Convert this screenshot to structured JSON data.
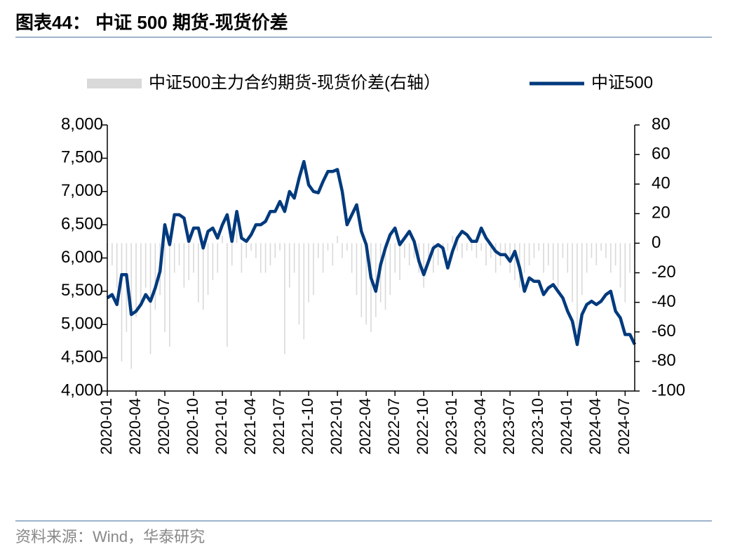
{
  "title": "图表44：  中证 500 期货-现货价差",
  "source": "资料来源：Wind，华泰研究",
  "chart_data": {
    "type": "combo",
    "categories": [
      "2020-01",
      null,
      null,
      null,
      null,
      null,
      "2020-04",
      null,
      null,
      null,
      null,
      null,
      "2020-07",
      null,
      null,
      null,
      null,
      null,
      "2020-10",
      null,
      null,
      null,
      null,
      null,
      "2021-01",
      null,
      null,
      null,
      null,
      null,
      "2021-04",
      null,
      null,
      null,
      null,
      null,
      "2021-07",
      null,
      null,
      null,
      null,
      null,
      "2021-10",
      null,
      null,
      null,
      null,
      null,
      "2022-01",
      null,
      null,
      null,
      null,
      null,
      "2022-04",
      null,
      null,
      null,
      null,
      null,
      "2022-07",
      null,
      null,
      null,
      null,
      null,
      "2022-10",
      null,
      null,
      null,
      null,
      null,
      "2023-01",
      null,
      null,
      null,
      null,
      null,
      "2023-04",
      null,
      null,
      null,
      null,
      null,
      "2023-07",
      null,
      null,
      null,
      null,
      null,
      "2023-10",
      null,
      null,
      null,
      null,
      null,
      "2024-01",
      null,
      null,
      null,
      null,
      null,
      "2024-04",
      null,
      null,
      null,
      null,
      null,
      "2024-07",
      null,
      null
    ],
    "series": [
      {
        "name": "中证500主力合约期货-现货价差(右轴）",
        "type": "bar",
        "axis": "y2",
        "color": "#d9d9d9",
        "values": [
          -5,
          -15,
          -30,
          -80,
          -60,
          -85,
          -50,
          -40,
          -30,
          -75,
          -45,
          -35,
          -60,
          -70,
          -20,
          -15,
          -30,
          -25,
          -20,
          -40,
          -45,
          -35,
          -25,
          -20,
          5,
          -70,
          -15,
          10,
          -20,
          -10,
          -5,
          -10,
          -20,
          -20,
          -15,
          -10,
          -5,
          -75,
          -30,
          -20,
          -55,
          -65,
          -40,
          -35,
          -10,
          -20,
          -5,
          -15,
          5,
          -10,
          -5,
          -20,
          -35,
          -50,
          -55,
          -60,
          -50,
          -40,
          -45,
          -35,
          -20,
          -25,
          -10,
          -15,
          -10,
          -20,
          -30,
          -15,
          -20,
          -15,
          -10,
          -5,
          5,
          -5,
          -10,
          -5,
          -5,
          -10,
          -5,
          -15,
          -10,
          -20,
          -15,
          -10,
          -20,
          -25,
          -30,
          -20,
          -15,
          -10,
          -5,
          -20,
          -15,
          -25,
          -30,
          -10,
          -20,
          -40,
          -60,
          -35,
          -20,
          -10,
          -15,
          -5,
          -10,
          -20,
          -15,
          -30,
          -40,
          -20,
          -10
        ]
      },
      {
        "name": "中证500",
        "type": "line",
        "color": "#003a7d",
        "values": [
          5400,
          5450,
          5300,
          5750,
          5750,
          5150,
          5200,
          5300,
          5450,
          5350,
          5550,
          5800,
          6500,
          6200,
          6650,
          6650,
          6600,
          6250,
          6450,
          6450,
          6150,
          6400,
          6450,
          6300,
          6500,
          6650,
          6250,
          6700,
          6300,
          6250,
          6350,
          6500,
          6500,
          6550,
          6700,
          6700,
          6850,
          6700,
          7000,
          6900,
          7200,
          7450,
          7100,
          7000,
          6980,
          7150,
          7300,
          7300,
          7330,
          7000,
          6500,
          6650,
          6800,
          6400,
          6200,
          5700,
          5500,
          5900,
          6150,
          6350,
          6450,
          6200,
          6300,
          6400,
          6250,
          5950,
          5750,
          5950,
          6150,
          6200,
          6150,
          5850,
          6100,
          6300,
          6400,
          6350,
          6250,
          6250,
          6450,
          6300,
          6200,
          6100,
          6050,
          6050,
          5950,
          6100,
          5850,
          5500,
          5700,
          5650,
          5650,
          5450,
          5550,
          5600,
          5500,
          5400,
          5200,
          5050,
          4700,
          5150,
          5300,
          5350,
          5300,
          5350,
          5450,
          5500,
          5200,
          5100,
          4850,
          4850,
          4700
        ]
      }
    ],
    "ylim": [
      4000,
      8000
    ],
    "yticks": [
      {
        "value": 4000,
        "label": "4,000"
      },
      {
        "value": 4500,
        "label": "4,500"
      },
      {
        "value": 5000,
        "label": "5,000"
      },
      {
        "value": 5500,
        "label": "5,500"
      },
      {
        "value": 6000,
        "label": "6,000"
      },
      {
        "value": 6500,
        "label": "6,500"
      },
      {
        "value": 7000,
        "label": "7,000"
      },
      {
        "value": 7500,
        "label": "7,500"
      },
      {
        "value": 8000,
        "label": "8,000"
      }
    ],
    "y2lim": [
      -100,
      80
    ],
    "y2ticks": [
      -100,
      -80,
      -60,
      -40,
      -20,
      0,
      20,
      40,
      60,
      80
    ],
    "grid": false
  }
}
